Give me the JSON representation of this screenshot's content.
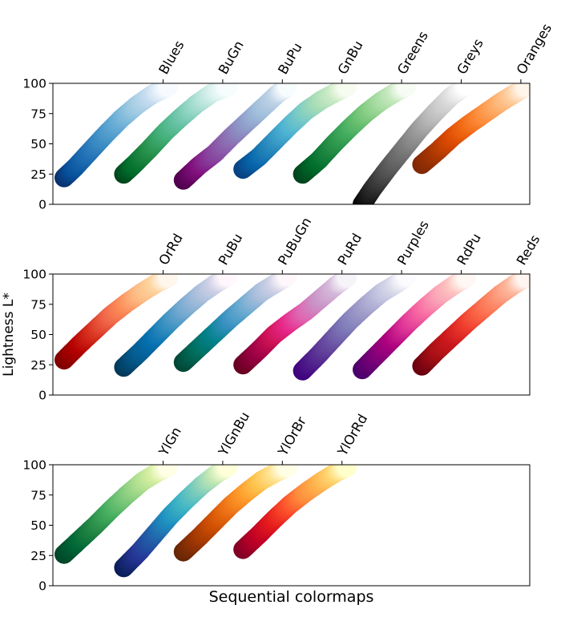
{
  "chart_data": {
    "type": "scatter",
    "xlabel": "Sequential colormaps",
    "ylabel": "Lightness L*",
    "ylim": [
      0,
      100
    ],
    "yticks": [
      0,
      25,
      50,
      75,
      100
    ],
    "grid": false,
    "panels": [
      {
        "series": [
          {
            "name": "Blues",
            "points": [
              [
                0,
                22
              ],
              [
                0.1,
                30
              ],
              [
                0.25,
                44
              ],
              [
                0.4,
                58
              ],
              [
                0.55,
                71
              ],
              [
                0.7,
                82
              ],
              [
                0.85,
                91
              ],
              [
                1,
                97
              ]
            ],
            "colors": [
              "#08306b",
              "#08519c",
              "#2171b5",
              "#4292c6",
              "#6baed6",
              "#9ecae1",
              "#c6dbef",
              "#f7fbff"
            ]
          },
          {
            "name": "BuGn",
            "points": [
              [
                0,
                25
              ],
              [
                0.1,
                33
              ],
              [
                0.25,
                46
              ],
              [
                0.4,
                60
              ],
              [
                0.55,
                72
              ],
              [
                0.7,
                83
              ],
              [
                0.85,
                92
              ],
              [
                1,
                97
              ]
            ],
            "colors": [
              "#00441b",
              "#006d2c",
              "#238b45",
              "#41ae76",
              "#66c2a4",
              "#99d8c9",
              "#ccece6",
              "#f7fcfd"
            ]
          },
          {
            "name": "BuPu",
            "points": [
              [
                0,
                20
              ],
              [
                0.15,
                32
              ],
              [
                0.3,
                42
              ],
              [
                0.45,
                55
              ],
              [
                0.6,
                67
              ],
              [
                0.75,
                79
              ],
              [
                0.9,
                91
              ],
              [
                1,
                97
              ]
            ],
            "colors": [
              "#4d004b",
              "#810f7c",
              "#88419d",
              "#8c6bb1",
              "#8c96c6",
              "#9ebcda",
              "#bfd3e6",
              "#f7fcfd"
            ]
          },
          {
            "name": "GnBu",
            "points": [
              [
                0,
                29
              ],
              [
                0.15,
                39
              ],
              [
                0.3,
                52
              ],
              [
                0.45,
                65
              ],
              [
                0.6,
                77
              ],
              [
                0.75,
                86
              ],
              [
                0.9,
                93
              ],
              [
                1,
                97
              ]
            ],
            "colors": [
              "#084081",
              "#0868ac",
              "#2b8cbe",
              "#4eb3d3",
              "#7bccc4",
              "#a8ddb5",
              "#ccebc5",
              "#f7fcf0"
            ]
          },
          {
            "name": "Greens",
            "points": [
              [
                0,
                25
              ],
              [
                0.15,
                36
              ],
              [
                0.3,
                50
              ],
              [
                0.45,
                63
              ],
              [
                0.6,
                75
              ],
              [
                0.75,
                85
              ],
              [
                0.9,
                93
              ],
              [
                1,
                97
              ]
            ],
            "colors": [
              "#00441b",
              "#006d2c",
              "#238b45",
              "#41ab5d",
              "#74c476",
              "#a1d99b",
              "#c7e9c0",
              "#f7fcf5"
            ]
          },
          {
            "name": "Greys",
            "points": [
              [
                0,
                0
              ],
              [
                0.1,
                13
              ],
              [
                0.25,
                30
              ],
              [
                0.4,
                46
              ],
              [
                0.55,
                62
              ],
              [
                0.7,
                76
              ],
              [
                0.85,
                89
              ],
              [
                1,
                98
              ]
            ],
            "colors": [
              "#000000",
              "#252525",
              "#525252",
              "#737373",
              "#969696",
              "#bdbdbd",
              "#d9d9d9",
              "#ffffff"
            ]
          },
          {
            "name": "Oranges",
            "points": [
              [
                0,
                33
              ],
              [
                0.15,
                44
              ],
              [
                0.3,
                56
              ],
              [
                0.45,
                66
              ],
              [
                0.6,
                75
              ],
              [
                0.75,
                84
              ],
              [
                0.9,
                92
              ],
              [
                1,
                97
              ]
            ],
            "colors": [
              "#7f2704",
              "#a63603",
              "#d94801",
              "#f16913",
              "#fd8d3c",
              "#fdae6b",
              "#fdd0a2",
              "#fff5eb"
            ]
          }
        ]
      },
      {
        "series": [
          {
            "name": "OrRd",
            "points": [
              [
                0,
                29
              ],
              [
                0.15,
                42
              ],
              [
                0.3,
                54
              ],
              [
                0.45,
                66
              ],
              [
                0.6,
                76
              ],
              [
                0.75,
                85
              ],
              [
                0.9,
                93
              ],
              [
                1,
                97
              ]
            ],
            "colors": [
              "#7f0000",
              "#b30000",
              "#d7301f",
              "#ef6548",
              "#fc8d59",
              "#fdbb84",
              "#fdd49e",
              "#fff7ec"
            ]
          },
          {
            "name": "PuBu",
            "points": [
              [
                0,
                23
              ],
              [
                0.15,
                35
              ],
              [
                0.3,
                48
              ],
              [
                0.45,
                61
              ],
              [
                0.6,
                73
              ],
              [
                0.75,
                84
              ],
              [
                0.9,
                93
              ],
              [
                1,
                98
              ]
            ],
            "colors": [
              "#023858",
              "#045a8d",
              "#0570b0",
              "#3690c0",
              "#74a9cf",
              "#a6bddb",
              "#d0d1e6",
              "#fff7fb"
            ]
          },
          {
            "name": "PuBuGn",
            "points": [
              [
                0,
                27
              ],
              [
                0.15,
                39
              ],
              [
                0.3,
                51
              ],
              [
                0.45,
                63
              ],
              [
                0.6,
                74
              ],
              [
                0.75,
                85
              ],
              [
                0.9,
                93
              ],
              [
                1,
                98
              ]
            ],
            "colors": [
              "#014636",
              "#016c59",
              "#02818a",
              "#3690c0",
              "#67a9cf",
              "#a6bddb",
              "#d0d1e6",
              "#fff7fb"
            ]
          },
          {
            "name": "PuRd",
            "points": [
              [
                0,
                25
              ],
              [
                0.15,
                37
              ],
              [
                0.3,
                50
              ],
              [
                0.45,
                60
              ],
              [
                0.6,
                69
              ],
              [
                0.75,
                80
              ],
              [
                0.9,
                91
              ],
              [
                1,
                97
              ]
            ],
            "colors": [
              "#67001f",
              "#980043",
              "#ce1256",
              "#e7298a",
              "#df65b0",
              "#c994c7",
              "#d4b9da",
              "#f7f4f9"
            ]
          },
          {
            "name": "Purples",
            "points": [
              [
                0,
                20
              ],
              [
                0.15,
                33
              ],
              [
                0.3,
                47
              ],
              [
                0.45,
                61
              ],
              [
                0.6,
                73
              ],
              [
                0.75,
                84
              ],
              [
                0.9,
                92
              ],
              [
                1,
                98
              ]
            ],
            "colors": [
              "#3f007d",
              "#54278f",
              "#6a51a3",
              "#807dba",
              "#9e9ac8",
              "#bcbddc",
              "#dadaeb",
              "#fcfbfd"
            ]
          },
          {
            "name": "RdPu",
            "points": [
              [
                0,
                21
              ],
              [
                0.15,
                34
              ],
              [
                0.3,
                47
              ],
              [
                0.45,
                60
              ],
              [
                0.6,
                72
              ],
              [
                0.75,
                83
              ],
              [
                0.9,
                92
              ],
              [
                1,
                97
              ]
            ],
            "colors": [
              "#49006a",
              "#7a0177",
              "#ae017e",
              "#dd3497",
              "#f768a1",
              "#fa9fb5",
              "#fcc5c0",
              "#fff7f3"
            ]
          },
          {
            "name": "Reds",
            "points": [
              [
                0,
                24
              ],
              [
                0.15,
                37
              ],
              [
                0.3,
                49
              ],
              [
                0.45,
                61
              ],
              [
                0.6,
                72
              ],
              [
                0.75,
                83
              ],
              [
                0.9,
                92
              ],
              [
                1,
                97
              ]
            ],
            "colors": [
              "#67000d",
              "#a50f15",
              "#cb181d",
              "#ef3b2c",
              "#fb6a4a",
              "#fc9272",
              "#fcbba1",
              "#fff5f0"
            ]
          }
        ]
      },
      {
        "series": [
          {
            "name": "YlGn",
            "points": [
              [
                0,
                26
              ],
              [
                0.15,
                38
              ],
              [
                0.3,
                50
              ],
              [
                0.45,
                63
              ],
              [
                0.6,
                75
              ],
              [
                0.75,
                86
              ],
              [
                0.9,
                94
              ],
              [
                1,
                98
              ]
            ],
            "colors": [
              "#004529",
              "#006837",
              "#238443",
              "#41ab5d",
              "#78c679",
              "#addd8e",
              "#d9f0a3",
              "#ffffe5"
            ]
          },
          {
            "name": "YlGnBu",
            "points": [
              [
                0,
                15
              ],
              [
                0.15,
                28
              ],
              [
                0.3,
                43
              ],
              [
                0.45,
                58
              ],
              [
                0.6,
                71
              ],
              [
                0.75,
                83
              ],
              [
                0.9,
                93
              ],
              [
                1,
                98
              ]
            ],
            "colors": [
              "#081d58",
              "#253494",
              "#225ea8",
              "#1d91c0",
              "#41b6c4",
              "#7fcdbb",
              "#c7e9b4",
              "#ffffd9"
            ]
          },
          {
            "name": "YlOrBr",
            "points": [
              [
                0,
                28
              ],
              [
                0.15,
                40
              ],
              [
                0.3,
                53
              ],
              [
                0.45,
                66
              ],
              [
                0.6,
                77
              ],
              [
                0.75,
                87
              ],
              [
                0.9,
                94
              ],
              [
                1,
                98
              ]
            ],
            "colors": [
              "#662506",
              "#993404",
              "#cc4c02",
              "#ec7014",
              "#fe9929",
              "#fec44f",
              "#fee391",
              "#ffffe5"
            ]
          },
          {
            "name": "YlOrRd",
            "points": [
              [
                0,
                30
              ],
              [
                0.15,
                42
              ],
              [
                0.3,
                55
              ],
              [
                0.45,
                67
              ],
              [
                0.6,
                77
              ],
              [
                0.75,
                86
              ],
              [
                0.9,
                94
              ],
              [
                1,
                98
              ]
            ],
            "colors": [
              "#800026",
              "#bd0026",
              "#e31a1c",
              "#fc4e2a",
              "#fd8d3c",
              "#feb24c",
              "#fed976",
              "#ffffcc"
            ]
          }
        ]
      }
    ]
  }
}
